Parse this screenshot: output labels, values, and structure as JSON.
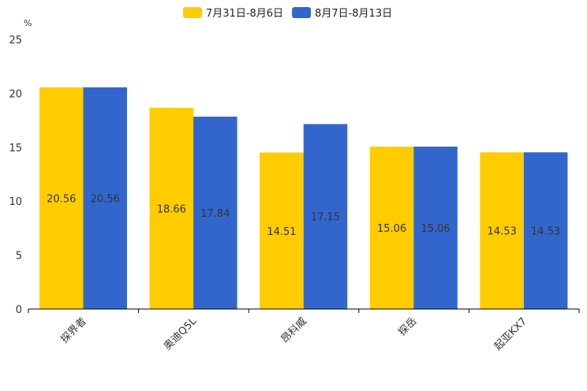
{
  "chart_data": {
    "type": "bar",
    "title": "",
    "ylabel": "%",
    "xlabel": "",
    "ylim": [
      0,
      25
    ],
    "yticks": [
      0,
      5,
      10,
      15,
      20,
      25
    ],
    "categories": [
      "探界者",
      "奥迪Q5L",
      "昂科威",
      "探岳",
      "起亚KX7"
    ],
    "series": [
      {
        "name": "7月31日-8月6日",
        "color": "#FFCC00",
        "values": [
          20.56,
          18.66,
          14.51,
          15.06,
          14.53
        ]
      },
      {
        "name": "8月7日-8月13日",
        "color": "#3366CC",
        "values": [
          20.56,
          17.84,
          17.15,
          15.06,
          14.53
        ]
      }
    ],
    "legend": "top-center",
    "grid": false
  }
}
